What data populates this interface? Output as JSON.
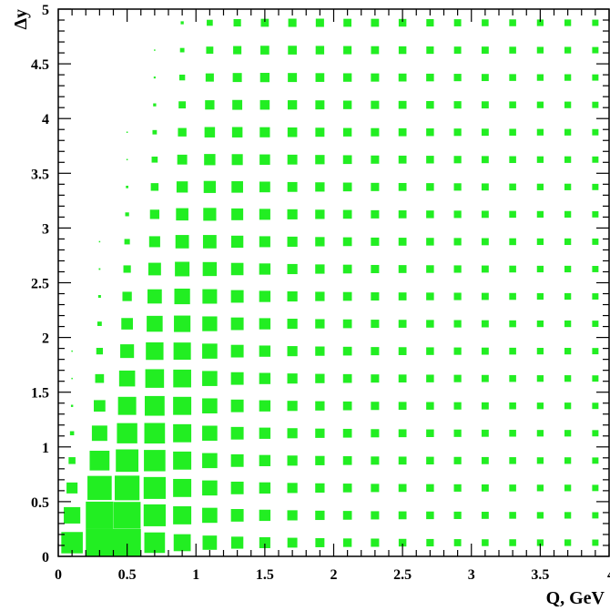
{
  "chart_data": {
    "type": "heatmap",
    "title": "",
    "xlabel": "Q, GeV",
    "ylabel": "Δy",
    "xlim": [
      0,
      4
    ],
    "ylim": [
      0,
      5
    ],
    "grid": false,
    "marker": "box",
    "color": "#22ee22",
    "x_ticks": {
      "major": [
        0,
        0.5,
        1,
        1.5,
        2,
        2.5,
        3,
        3.5,
        4
      ],
      "labels": [
        "0",
        "0.5",
        "1",
        "1.5",
        "2",
        "2.5",
        "3",
        "3.5",
        "4"
      ]
    },
    "y_ticks": {
      "major": [
        0,
        0.5,
        1,
        1.5,
        2,
        2.5,
        3,
        3.5,
        4,
        4.5,
        5
      ],
      "labels": [
        "0",
        "0.5",
        "1",
        "1.5",
        "2",
        "2.5",
        "3",
        "3.5",
        "4",
        "4.5",
        "5"
      ]
    },
    "x_bins": [
      0.1,
      0.3,
      0.5,
      0.7,
      0.9,
      1.1,
      1.3,
      1.5,
      1.7,
      1.9,
      2.1,
      2.3,
      2.5,
      2.7,
      2.9,
      3.1,
      3.3,
      3.5,
      3.7,
      3.9
    ],
    "y_bins": [
      0.125,
      0.375,
      0.625,
      0.875,
      1.125,
      1.375,
      1.625,
      1.875,
      2.125,
      2.375,
      2.625,
      2.875,
      3.125,
      3.375,
      3.625,
      3.875,
      4.125,
      4.375,
      4.625,
      4.875
    ],
    "z_note": "relative box content (0..1), rows indexed by y bin from bottom",
    "z": [
      [
        0.78,
        1.0,
        1.0,
        0.75,
        0.62,
        0.52,
        0.44,
        0.4,
        0.36,
        0.33,
        0.31,
        0.3,
        0.28,
        0.27,
        0.26,
        0.25,
        0.25,
        0.24,
        0.24,
        0.23
      ],
      [
        0.6,
        1.0,
        0.98,
        0.8,
        0.66,
        0.55,
        0.46,
        0.41,
        0.37,
        0.34,
        0.32,
        0.3,
        0.29,
        0.28,
        0.27,
        0.26,
        0.25,
        0.24,
        0.24,
        0.23
      ],
      [
        0.4,
        0.88,
        0.9,
        0.8,
        0.66,
        0.55,
        0.46,
        0.41,
        0.37,
        0.34,
        0.32,
        0.3,
        0.29,
        0.28,
        0.27,
        0.26,
        0.25,
        0.24,
        0.24,
        0.23
      ],
      [
        0.25,
        0.72,
        0.82,
        0.78,
        0.66,
        0.55,
        0.46,
        0.41,
        0.37,
        0.34,
        0.32,
        0.3,
        0.29,
        0.28,
        0.27,
        0.26,
        0.25,
        0.24,
        0.24,
        0.23
      ],
      [
        0.15,
        0.56,
        0.74,
        0.75,
        0.66,
        0.55,
        0.46,
        0.41,
        0.37,
        0.34,
        0.32,
        0.3,
        0.29,
        0.28,
        0.27,
        0.26,
        0.25,
        0.24,
        0.24,
        0.23
      ],
      [
        0.08,
        0.42,
        0.66,
        0.72,
        0.66,
        0.55,
        0.46,
        0.41,
        0.37,
        0.34,
        0.32,
        0.3,
        0.29,
        0.28,
        0.27,
        0.26,
        0.25,
        0.24,
        0.24,
        0.23
      ],
      [
        0.04,
        0.32,
        0.58,
        0.68,
        0.65,
        0.55,
        0.46,
        0.41,
        0.37,
        0.34,
        0.32,
        0.3,
        0.29,
        0.28,
        0.27,
        0.26,
        0.25,
        0.24,
        0.24,
        0.23
      ],
      [
        0.02,
        0.24,
        0.5,
        0.64,
        0.63,
        0.55,
        0.46,
        0.41,
        0.37,
        0.34,
        0.32,
        0.3,
        0.29,
        0.28,
        0.27,
        0.26,
        0.25,
        0.24,
        0.24,
        0.23
      ],
      [
        0.0,
        0.16,
        0.42,
        0.58,
        0.6,
        0.54,
        0.46,
        0.41,
        0.37,
        0.34,
        0.32,
        0.3,
        0.29,
        0.28,
        0.27,
        0.26,
        0.25,
        0.24,
        0.24,
        0.23
      ],
      [
        0.0,
        0.1,
        0.34,
        0.52,
        0.57,
        0.53,
        0.46,
        0.41,
        0.37,
        0.34,
        0.32,
        0.3,
        0.29,
        0.28,
        0.27,
        0.26,
        0.25,
        0.24,
        0.24,
        0.23
      ],
      [
        0.0,
        0.06,
        0.27,
        0.46,
        0.53,
        0.51,
        0.45,
        0.41,
        0.37,
        0.34,
        0.32,
        0.3,
        0.29,
        0.28,
        0.27,
        0.26,
        0.25,
        0.24,
        0.24,
        0.23
      ],
      [
        0.0,
        0.03,
        0.2,
        0.4,
        0.49,
        0.49,
        0.44,
        0.4,
        0.37,
        0.34,
        0.32,
        0.3,
        0.29,
        0.28,
        0.27,
        0.26,
        0.25,
        0.24,
        0.24,
        0.23
      ],
      [
        0.0,
        0.0,
        0.14,
        0.34,
        0.45,
        0.47,
        0.43,
        0.4,
        0.37,
        0.34,
        0.32,
        0.3,
        0.29,
        0.28,
        0.27,
        0.26,
        0.25,
        0.24,
        0.24,
        0.23
      ],
      [
        0.0,
        0.0,
        0.09,
        0.28,
        0.41,
        0.44,
        0.42,
        0.39,
        0.36,
        0.34,
        0.32,
        0.3,
        0.29,
        0.28,
        0.27,
        0.26,
        0.25,
        0.24,
        0.24,
        0.23
      ],
      [
        0.0,
        0.0,
        0.05,
        0.22,
        0.36,
        0.41,
        0.4,
        0.38,
        0.36,
        0.34,
        0.32,
        0.3,
        0.29,
        0.28,
        0.27,
        0.26,
        0.25,
        0.24,
        0.24,
        0.23
      ],
      [
        0.0,
        0.0,
        0.02,
        0.16,
        0.31,
        0.38,
        0.38,
        0.37,
        0.35,
        0.33,
        0.31,
        0.3,
        0.29,
        0.28,
        0.27,
        0.26,
        0.25,
        0.24,
        0.24,
        0.23
      ],
      [
        0.0,
        0.0,
        0.0,
        0.11,
        0.26,
        0.34,
        0.36,
        0.35,
        0.34,
        0.33,
        0.31,
        0.3,
        0.29,
        0.28,
        0.27,
        0.26,
        0.25,
        0.24,
        0.24,
        0.23
      ],
      [
        0.0,
        0.0,
        0.0,
        0.07,
        0.21,
        0.3,
        0.33,
        0.34,
        0.33,
        0.32,
        0.31,
        0.3,
        0.29,
        0.28,
        0.27,
        0.26,
        0.25,
        0.24,
        0.24,
        0.23
      ],
      [
        0.0,
        0.0,
        0.0,
        0.04,
        0.16,
        0.26,
        0.3,
        0.32,
        0.32,
        0.31,
        0.3,
        0.29,
        0.28,
        0.27,
        0.26,
        0.26,
        0.25,
        0.24,
        0.24,
        0.23
      ],
      [
        0.0,
        0.0,
        0.0,
        0.0,
        0.11,
        0.22,
        0.27,
        0.29,
        0.3,
        0.3,
        0.29,
        0.29,
        0.28,
        0.27,
        0.26,
        0.25,
        0.25,
        0.24,
        0.24,
        0.23
      ]
    ]
  }
}
